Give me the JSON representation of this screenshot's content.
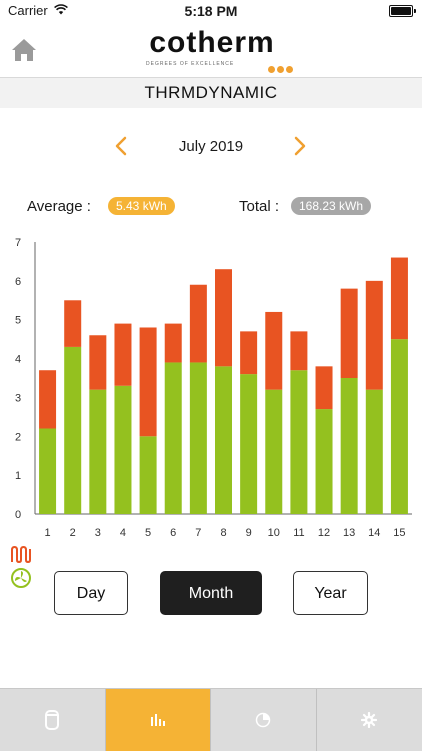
{
  "status": {
    "carrier": "Carrier",
    "time": "5:18 PM"
  },
  "header": {
    "logo_text": "cotherm",
    "logo_tagline": "DEGREES OF EXCELLENCE",
    "logo_dot_color": "#f0a030"
  },
  "section": {
    "title": "THRMDYNAMIC"
  },
  "period": {
    "label": "July 2019"
  },
  "summary": {
    "average_label": "Average :",
    "average_value": "5.43 kWh",
    "total_label": "Total :",
    "total_value": "168.23 kWh"
  },
  "chart_data": {
    "type": "bar",
    "stacked": true,
    "categories": [
      "1",
      "2",
      "3",
      "4",
      "5",
      "6",
      "7",
      "8",
      "9",
      "10",
      "11",
      "12",
      "13",
      "14",
      "15"
    ],
    "series": [
      {
        "color": "#94c11f",
        "values": [
          2.2,
          4.3,
          3.2,
          3.3,
          2.0,
          3.9,
          3.9,
          3.8,
          3.6,
          3.2,
          3.7,
          2.7,
          3.5,
          3.2,
          4.5
        ]
      },
      {
        "color": "#e85422",
        "values": [
          1.5,
          1.2,
          1.4,
          1.6,
          2.8,
          1.0,
          2.0,
          2.5,
          1.1,
          2.0,
          1.0,
          1.1,
          2.3,
          2.8,
          2.1
        ]
      }
    ],
    "ylim": [
      0,
      7
    ],
    "yticks": [
      0,
      1,
      2,
      3,
      4,
      5,
      6,
      7
    ],
    "xlabel": "",
    "ylabel": ""
  },
  "buttons": {
    "day": "Day",
    "month": "Month",
    "year": "Year"
  },
  "tabs": [
    {
      "icon": "device-icon"
    },
    {
      "icon": "bar-chart-icon"
    },
    {
      "icon": "pie-chart-icon"
    },
    {
      "icon": "gear-icon"
    }
  ],
  "colors": {
    "accent": "#f5b335",
    "heater": "#e85422",
    "heatpump": "#94c11f"
  }
}
